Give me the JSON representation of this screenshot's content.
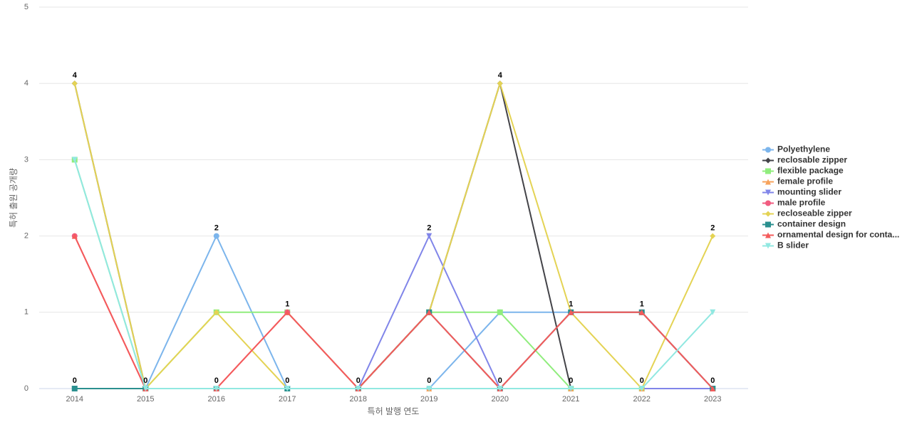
{
  "chart_data": {
    "type": "line",
    "x_label": "특허 발행 연도",
    "y_label": "특허 출원 공개량",
    "categories": [
      "2014",
      "2015",
      "2016",
      "2017",
      "2018",
      "2019",
      "2020",
      "2021",
      "2022",
      "2023"
    ],
    "ylim": [
      0,
      5
    ],
    "yticks": [
      0,
      1,
      2,
      3,
      4,
      5
    ],
    "grid": true,
    "legend": "right",
    "series": [
      {
        "name": "Polyethylene",
        "color": "#7cb5ec",
        "values": [
          0,
          0,
          2,
          0,
          0,
          0,
          1,
          1,
          1,
          0
        ]
      },
      {
        "name": "reclosable zipper",
        "color": "#434348",
        "values": [
          4,
          0,
          0,
          0,
          0,
          1,
          4,
          0,
          0,
          0
        ]
      },
      {
        "name": "flexible package",
        "color": "#90ed7d",
        "values": [
          3,
          0,
          1,
          1,
          0,
          1,
          1,
          0,
          0,
          0
        ]
      },
      {
        "name": "female profile",
        "color": "#f7a35c",
        "values": [
          0,
          0,
          0,
          0,
          0,
          0,
          0,
          0,
          0,
          0
        ]
      },
      {
        "name": "mounting slider",
        "color": "#8085e9",
        "values": [
          0,
          0,
          0,
          0,
          0,
          2,
          0,
          0,
          0,
          0
        ]
      },
      {
        "name": "male profile",
        "color": "#f15c80",
        "values": [
          2,
          0,
          0,
          1,
          0,
          1,
          0,
          1,
          1,
          0
        ]
      },
      {
        "name": "recloseable zipper",
        "color": "#e4d354",
        "values": [
          4,
          0,
          1,
          0,
          0,
          1,
          4,
          1,
          0,
          2
        ]
      },
      {
        "name": "container design",
        "color": "#2b908f",
        "values": [
          0,
          0,
          0,
          0,
          0,
          1,
          0,
          1,
          1,
          0
        ]
      },
      {
        "name": "ornamental design for conta...",
        "color": "#f45b5b",
        "values": [
          2,
          0,
          0,
          1,
          0,
          1,
          0,
          1,
          1,
          0
        ]
      },
      {
        "name": "B slider",
        "color": "#91e8e1",
        "values": [
          3,
          0,
          0,
          0,
          0,
          0,
          0,
          0,
          0,
          1
        ]
      }
    ]
  }
}
